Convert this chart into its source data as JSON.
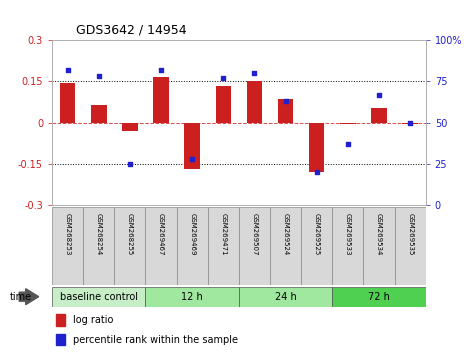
{
  "title": "GDS3642 / 14954",
  "samples": [
    "GSM268253",
    "GSM268254",
    "GSM268255",
    "GSM269467",
    "GSM269469",
    "GSM269471",
    "GSM269507",
    "GSM269524",
    "GSM269525",
    "GSM269533",
    "GSM269534",
    "GSM269535"
  ],
  "log_ratio": [
    0.145,
    0.065,
    -0.03,
    0.165,
    -0.17,
    0.135,
    0.15,
    0.085,
    -0.18,
    -0.005,
    0.055,
    -0.005
  ],
  "percentile_rank": [
    82,
    78,
    25,
    82,
    28,
    77,
    80,
    63,
    20,
    37,
    67,
    50
  ],
  "group_spans": [
    [
      0,
      3,
      "baseline control",
      "#C8EEC8"
    ],
    [
      3,
      6,
      "12 h",
      "#A0E8A0"
    ],
    [
      6,
      9,
      "24 h",
      "#A0E8A0"
    ],
    [
      9,
      12,
      "72 h",
      "#50D050"
    ]
  ],
  "ylim_left": [
    -0.3,
    0.3
  ],
  "ylim_right": [
    0,
    100
  ],
  "yticks_left": [
    -0.3,
    -0.15,
    0.0,
    0.15,
    0.3
  ],
  "yticks_right": [
    0,
    25,
    50,
    75,
    100
  ],
  "hline_dotted": [
    0.15,
    -0.15
  ],
  "hline_dashed": 0.0,
  "bar_color": "#CC2020",
  "dot_color": "#2020CC",
  "sample_box_color": "#D8D8D8",
  "title_fontsize": 9,
  "axis_fontsize": 7,
  "sample_fontsize": 5,
  "group_fontsize": 7,
  "legend_fontsize": 7
}
